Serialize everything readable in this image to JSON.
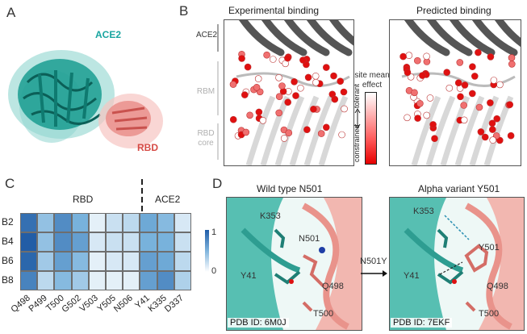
{
  "panels": {
    "a": {
      "letter": "A",
      "ace2_label": "ACE2",
      "rbd_label": "RBD"
    },
    "b": {
      "letter": "B",
      "title_exp": "Experimental binding",
      "title_pred": "Predicted binding",
      "side_ace2": "ACE2",
      "side_rbm": "RBM",
      "side_core": "RBD\ncore",
      "cbar_title": "site mean\neffect",
      "cbar_tolerant": "tolerant",
      "cbar_constrained": "constrained"
    },
    "c": {
      "letter": "C",
      "rbd_label": "RBD",
      "ace2_label": "ACE2",
      "rows": [
        "B2",
        "B4",
        "B6",
        "B8"
      ],
      "cols": [
        "Q498",
        "P499",
        "T500",
        "G502",
        "V503",
        "Y505",
        "N506",
        "Y41",
        "K335",
        "D337"
      ],
      "cbar_max": "1",
      "cbar_min": "0"
    },
    "d": {
      "letter": "D",
      "title_wt": "Wild type N501",
      "title_var": "Alpha variant Y501",
      "arrow_label": "N501Y",
      "wt_residues": [
        "K353",
        "N501",
        "Y41",
        "Q498",
        "T500"
      ],
      "var_residues": [
        "K353",
        "Y501",
        "Y41",
        "Q498",
        "T500"
      ],
      "pdb_wt": "PDB ID: 6M0J",
      "pdb_var": "PDB ID: 7EKF"
    }
  },
  "chart_data": {
    "type": "heatmap",
    "rows": [
      "B2",
      "B4",
      "B6",
      "B8"
    ],
    "columns": [
      "Q498",
      "P499",
      "T500",
      "G502",
      "V503",
      "Y505",
      "N506",
      "Y41",
      "K335",
      "D337"
    ],
    "column_groups": [
      {
        "name": "RBD",
        "columns": [
          "Q498",
          "P499",
          "T500",
          "G502",
          "V503",
          "Y505",
          "N506"
        ]
      },
      {
        "name": "ACE2",
        "columns": [
          "Y41",
          "K335",
          "D337"
        ]
      }
    ],
    "values": [
      [
        0.85,
        0.4,
        0.7,
        0.5,
        0.1,
        0.2,
        0.25,
        0.55,
        0.45,
        0.15
      ],
      [
        0.95,
        0.4,
        0.7,
        0.6,
        0.15,
        0.2,
        0.2,
        0.5,
        0.5,
        0.2
      ],
      [
        0.9,
        0.35,
        0.6,
        0.45,
        0.1,
        0.15,
        0.15,
        0.6,
        0.55,
        0.25
      ],
      [
        0.75,
        0.25,
        0.45,
        0.35,
        0.1,
        0.1,
        0.1,
        0.6,
        0.7,
        0.3
      ]
    ],
    "colorbar_range": [
      0,
      1
    ]
  }
}
